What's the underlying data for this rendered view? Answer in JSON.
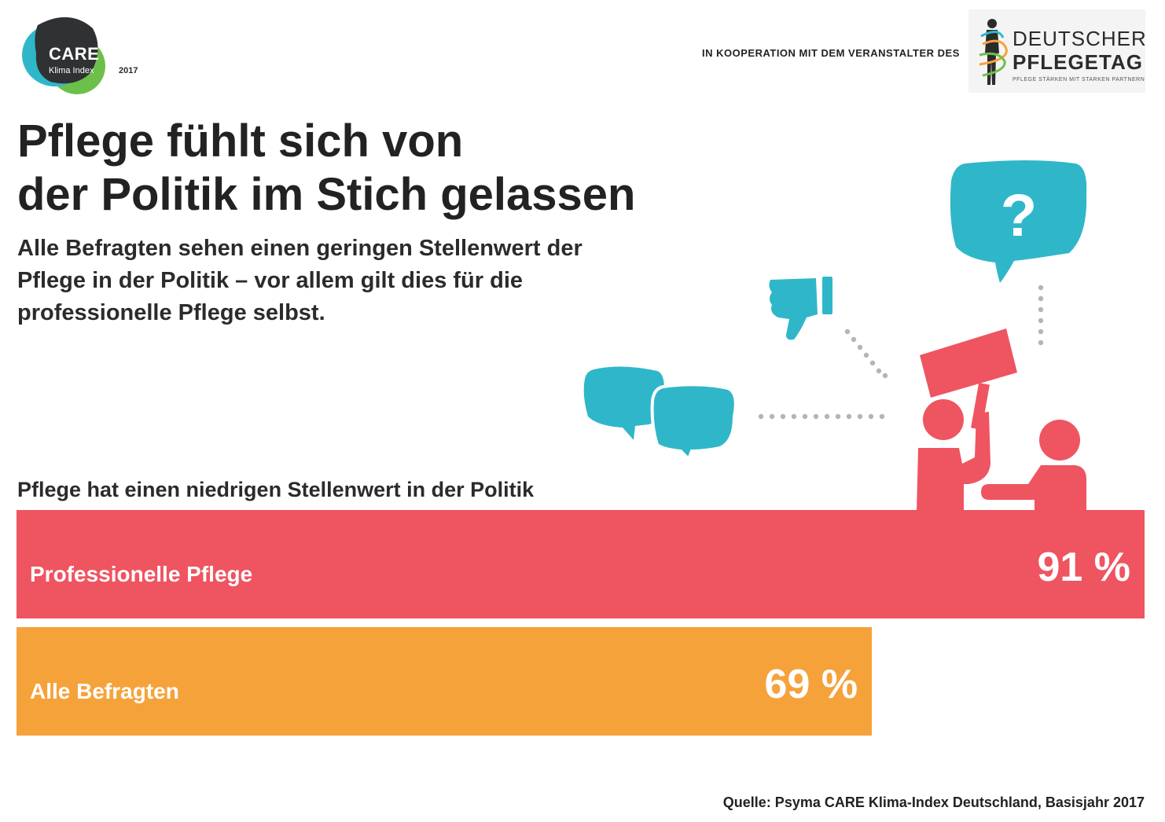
{
  "header": {
    "care_logo": {
      "word": "CARE",
      "sub": "Klima Index",
      "year": "2017"
    },
    "cooperation": "IN KOOPERATION MIT DEM VERANSTALTER DES",
    "partner_logo": {
      "line1": "DEUTSCHER",
      "line2": "PFLEGETAG",
      "line3": "PFLEGE STÄRKEN MIT STARKEN PARTNERN"
    }
  },
  "title_lines": [
    "Pflege fühlt sich von",
    "der Politik im Stich gelassen"
  ],
  "subtitle_lines": [
    "Alle Befragten sehen einen geringen Stellenwert der",
    "Pflege in der Politik – vor allem gilt dies für die",
    "professionelle Pflege selbst."
  ],
  "chart_label": "Pflege hat einen niedrigen Stellenwert in der Politik",
  "chart_data": {
    "type": "bar",
    "orientation": "horizontal",
    "title": "Pflege hat einen niedrigen Stellenwert in der Politik",
    "categories": [
      "Professionelle Pflege",
      "Alle Befragten"
    ],
    "values": [
      91,
      69
    ],
    "value_labels": [
      "91 %",
      "69 %"
    ],
    "unit": "%",
    "colors": [
      "#ef5461",
      "#f6a23b"
    ],
    "xlim": [
      0,
      91
    ],
    "grid": false,
    "legend": "none"
  },
  "icons": [
    "care-logo-icon",
    "pflegetag-figure-icon",
    "speech-bubbles-icon",
    "thumbs-down-icon",
    "question-bubble-icon",
    "protest-sign-person-icon",
    "person-at-desk-icon"
  ],
  "colors": {
    "teal": "#2fb7c9",
    "red": "#ef5461",
    "orange": "#f6a23b",
    "dark": "#222222",
    "dots": "#b5b5b5"
  },
  "source": "Quelle: Psyma CARE Klima-Index Deutschland, Basisjahr 2017"
}
